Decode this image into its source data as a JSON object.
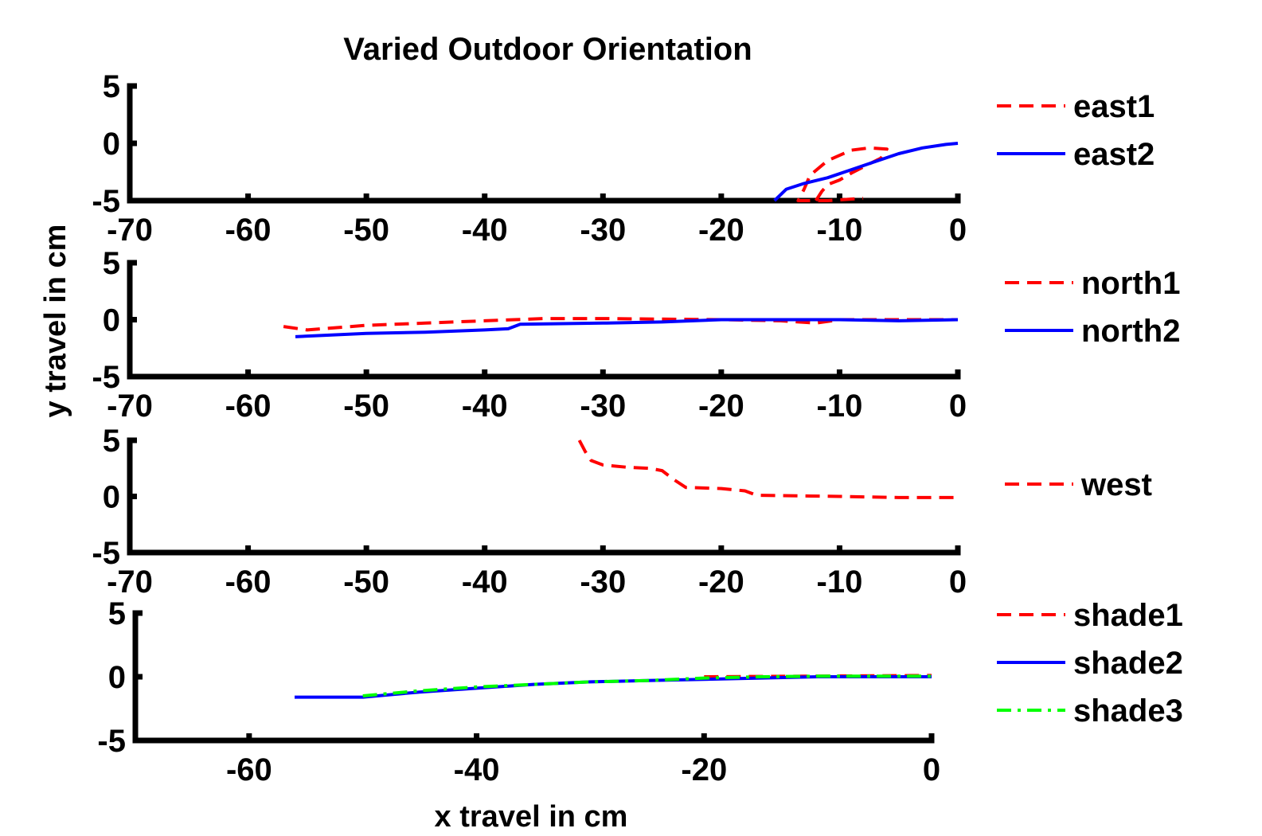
{
  "figure": {
    "title": "Varied Outdoor Orientation",
    "xlabel": "x travel in cm",
    "ylabel": "y travel in cm"
  },
  "chart_data": [
    {
      "type": "line",
      "xlim": [
        -70,
        0
      ],
      "ylim": [
        -5,
        5
      ],
      "xticks": [
        -70,
        -60,
        -50,
        -40,
        -30,
        -20,
        -10,
        0
      ],
      "yticks": [
        5,
        0,
        -5
      ],
      "grid": false,
      "legend_position": "right",
      "series": [
        {
          "name": "east1",
          "style": "dashed",
          "color": "#ff0000",
          "points": [
            [
              -12,
              -5
            ],
            [
              -11.5,
              -4.2
            ],
            [
              -11,
              -3.6
            ],
            [
              -10,
              -3.2
            ],
            [
              -9,
              -2.6
            ],
            [
              -7.5,
              -1.8
            ],
            [
              -6.5,
              -1.3
            ],
            [
              -6,
              -0.5
            ],
            [
              -7.5,
              -0.4
            ],
            [
              -9,
              -0.6
            ],
            [
              -11,
              -1.5
            ],
            [
              -12.5,
              -2.8
            ],
            [
              -13,
              -4
            ],
            [
              -13.5,
              -5
            ],
            [
              -11,
              -5
            ],
            [
              -8,
              -4.8
            ]
          ]
        },
        {
          "name": "east2",
          "style": "solid",
          "color": "#0000ff",
          "points": [
            [
              -15.5,
              -5
            ],
            [
              -14.5,
              -4
            ],
            [
              -13,
              -3.5
            ],
            [
              -11,
              -3
            ],
            [
              -9,
              -2.3
            ],
            [
              -7,
              -1.6
            ],
            [
              -5,
              -0.9
            ],
            [
              -3,
              -0.4
            ],
            [
              -1,
              -0.1
            ],
            [
              0,
              0
            ]
          ]
        }
      ]
    },
    {
      "type": "line",
      "xlim": [
        -70,
        0
      ],
      "ylim": [
        -5,
        5
      ],
      "xticks": [
        -70,
        -60,
        -50,
        -40,
        -30,
        -20,
        -10,
        0
      ],
      "yticks": [
        5,
        0,
        -5
      ],
      "grid": false,
      "legend_position": "right",
      "series": [
        {
          "name": "north1",
          "style": "dashed",
          "color": "#ff0000",
          "points": [
            [
              -57,
              -0.6
            ],
            [
              -55,
              -0.9
            ],
            [
              -50,
              -0.5
            ],
            [
              -45,
              -0.3
            ],
            [
              -40,
              -0.1
            ],
            [
              -35,
              0.1
            ],
            [
              -30,
              0.1
            ],
            [
              -25,
              0.05
            ],
            [
              -20,
              0
            ],
            [
              -15,
              -0.1
            ],
            [
              -12,
              -0.3
            ],
            [
              -10,
              0
            ],
            [
              -5,
              0
            ],
            [
              0,
              0
            ]
          ]
        },
        {
          "name": "north2",
          "style": "solid",
          "color": "#0000ff",
          "points": [
            [
              -56,
              -1.5
            ],
            [
              -50,
              -1.2
            ],
            [
              -45,
              -1.1
            ],
            [
              -40,
              -0.9
            ],
            [
              -38,
              -0.8
            ],
            [
              -37,
              -0.4
            ],
            [
              -30,
              -0.3
            ],
            [
              -25,
              -0.2
            ],
            [
              -20,
              0
            ],
            [
              -15,
              0
            ],
            [
              -10,
              0
            ],
            [
              -5,
              -0.1
            ],
            [
              0,
              0
            ]
          ]
        }
      ]
    },
    {
      "type": "line",
      "xlim": [
        -70,
        0
      ],
      "ylim": [
        -5,
        5
      ],
      "xticks": [
        -70,
        -60,
        -50,
        -40,
        -30,
        -20,
        -10,
        0
      ],
      "yticks": [
        5,
        0,
        -5
      ],
      "grid": false,
      "legend_position": "right",
      "series": [
        {
          "name": "west",
          "style": "dashed",
          "color": "#ff0000",
          "points": [
            [
              -32,
              5
            ],
            [
              -31.5,
              4
            ],
            [
              -31,
              3.2
            ],
            [
              -30,
              2.8
            ],
            [
              -28,
              2.6
            ],
            [
              -26,
              2.5
            ],
            [
              -25,
              2.3
            ],
            [
              -24,
              1.5
            ],
            [
              -23,
              0.8
            ],
            [
              -20,
              0.7
            ],
            [
              -18,
              0.5
            ],
            [
              -17,
              0.1
            ],
            [
              -10,
              0
            ],
            [
              -5,
              -0.1
            ],
            [
              0,
              -0.1
            ]
          ]
        }
      ]
    },
    {
      "type": "line",
      "xlim": [
        -70,
        0
      ],
      "ylim": [
        -5,
        5
      ],
      "xticks": [
        -60,
        -40,
        -20,
        0
      ],
      "yticks": [
        5,
        0,
        -5
      ],
      "grid": false,
      "legend_position": "right",
      "series": [
        {
          "name": "shade1",
          "style": "dashed",
          "color": "#ff0000",
          "points": [
            [
              -20,
              0
            ],
            [
              -10,
              0.05
            ],
            [
              0,
              0.1
            ]
          ]
        },
        {
          "name": "shade2",
          "style": "solid",
          "color": "#0000ff",
          "points": [
            [
              -56,
              -1.6
            ],
            [
              -50,
              -1.6
            ],
            [
              -45,
              -1.2
            ],
            [
              -40,
              -0.9
            ],
            [
              -35,
              -0.6
            ],
            [
              -30,
              -0.4
            ],
            [
              -25,
              -0.3
            ],
            [
              -20,
              -0.2
            ],
            [
              -15,
              -0.1
            ],
            [
              -10,
              0
            ],
            [
              -5,
              0
            ],
            [
              0,
              0
            ]
          ]
        },
        {
          "name": "shade3",
          "style": "dashdot",
          "color": "#00ff00",
          "points": [
            [
              -50,
              -1.5
            ],
            [
              -45,
              -1.1
            ],
            [
              -40,
              -0.8
            ],
            [
              -35,
              -0.6
            ],
            [
              -30,
              -0.4
            ],
            [
              -25,
              -0.3
            ],
            [
              -20,
              -0.1
            ],
            [
              -15,
              0
            ],
            [
              -10,
              0.05
            ],
            [
              -5,
              0.05
            ],
            [
              0,
              0.05
            ]
          ]
        }
      ]
    }
  ]
}
